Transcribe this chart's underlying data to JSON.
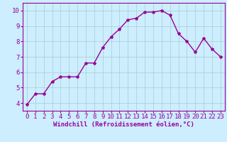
{
  "x": [
    0,
    1,
    2,
    3,
    4,
    5,
    6,
    7,
    8,
    9,
    10,
    11,
    12,
    13,
    14,
    15,
    16,
    17,
    18,
    19,
    20,
    21,
    22,
    23
  ],
  "y": [
    3.9,
    4.6,
    4.6,
    5.4,
    5.7,
    5.7,
    5.7,
    6.6,
    6.6,
    7.6,
    8.3,
    8.8,
    9.4,
    9.5,
    9.9,
    9.9,
    10.0,
    9.7,
    8.5,
    8.0,
    7.3,
    8.2,
    7.5,
    7.0
  ],
  "line_color": "#990099",
  "marker": "*",
  "marker_size": 3,
  "bg_color": "#cceeff",
  "grid_color": "#aacccc",
  "xlabel": "Windchill (Refroidissement éolien,°C)",
  "xlim": [
    -0.5,
    23.5
  ],
  "ylim": [
    3.5,
    10.5
  ],
  "xticks": [
    0,
    1,
    2,
    3,
    4,
    5,
    6,
    7,
    8,
    9,
    10,
    11,
    12,
    13,
    14,
    15,
    16,
    17,
    18,
    19,
    20,
    21,
    22,
    23
  ],
  "yticks": [
    4,
    5,
    6,
    7,
    8,
    9,
    10
  ],
  "xlabel_fontsize": 6.5,
  "tick_fontsize": 6.5,
  "label_color": "#990099",
  "axis_color": "#990099",
  "linewidth": 1.0
}
